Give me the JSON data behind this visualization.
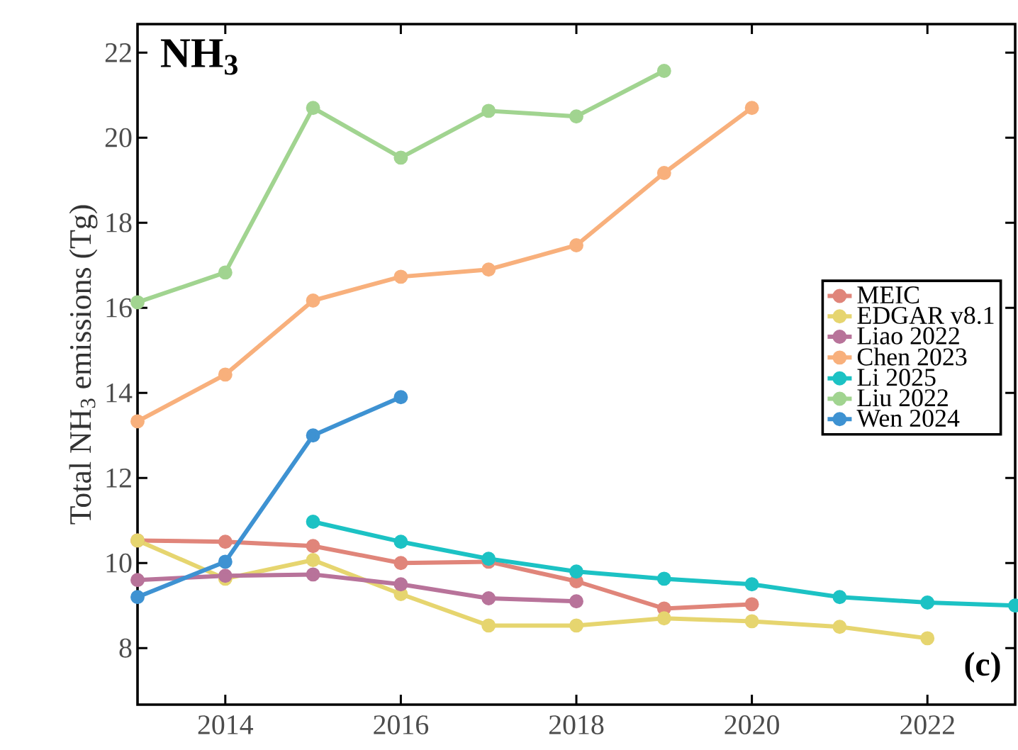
{
  "chart_data": {
    "type": "line",
    "title": "NH$_{3}$",
    "ylabel": "Total NH$_{3}$ emissions (Tg)",
    "annotations": [
      "(c)"
    ],
    "xlim": [
      2013,
      2023
    ],
    "ylim": [
      6.67,
      22.67
    ],
    "xticks": [
      2014,
      2016,
      2018,
      2020,
      2022
    ],
    "yticks": [
      8,
      10,
      12,
      14,
      16,
      18,
      20,
      22
    ],
    "legend": "right",
    "marker": "circle",
    "line_style": "solid",
    "series": [
      {
        "name": "MEIC",
        "color": "#e0857a",
        "x": [
          2013,
          2014,
          2015,
          2016,
          2017,
          2018,
          2019,
          2020
        ],
        "values": [
          10.53,
          10.5,
          10.4,
          10.0,
          10.03,
          9.57,
          8.93,
          9.03
        ]
      },
      {
        "name": "EDGAR v8.1",
        "color": "#e6d56f",
        "x": [
          2013,
          2014,
          2015,
          2016,
          2017,
          2018,
          2019,
          2020,
          2021,
          2022
        ],
        "values": [
          10.53,
          9.63,
          10.07,
          9.27,
          8.53,
          8.53,
          8.7,
          8.63,
          8.5,
          8.23
        ]
      },
      {
        "name": "Liao 2022",
        "color": "#b8739a",
        "x": [
          2013,
          2014,
          2015,
          2016,
          2017,
          2018
        ],
        "values": [
          9.6,
          9.7,
          9.73,
          9.5,
          9.17,
          9.1
        ]
      },
      {
        "name": "Chen 2023",
        "color": "#f8b07c",
        "x": [
          2013,
          2014,
          2015,
          2016,
          2017,
          2018,
          2019,
          2020
        ],
        "values": [
          13.33,
          14.43,
          16.17,
          16.73,
          16.9,
          17.47,
          19.17,
          20.7
        ]
      },
      {
        "name": "Li 2025",
        "color": "#1cc2c4",
        "x": [
          2015,
          2016,
          2017,
          2018,
          2019,
          2020,
          2021,
          2022,
          2023
        ],
        "values": [
          10.97,
          10.5,
          10.1,
          9.8,
          9.63,
          9.5,
          9.2,
          9.07,
          9.0
        ]
      },
      {
        "name": "Liu 2022",
        "color": "#a1d490",
        "x": [
          2013,
          2014,
          2015,
          2016,
          2017,
          2018,
          2019
        ],
        "values": [
          16.13,
          16.83,
          20.7,
          19.53,
          20.63,
          20.5,
          21.57
        ]
      },
      {
        "name": "Wen 2024",
        "color": "#3e92d2",
        "x": [
          2013,
          2014,
          2015,
          2016
        ],
        "values": [
          9.2,
          10.03,
          13.0,
          13.9
        ]
      }
    ]
  }
}
